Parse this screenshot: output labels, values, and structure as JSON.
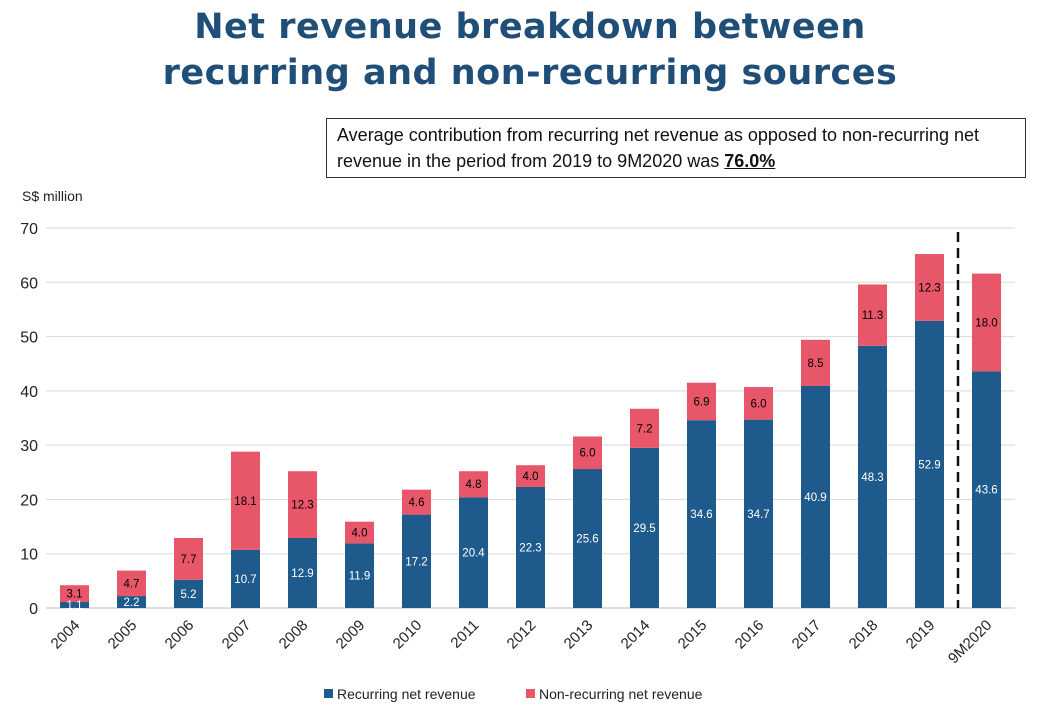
{
  "title": {
    "line1": "Net revenue breakdown between",
    "line2": "recurring and non-recurring sources"
  },
  "callout": {
    "text": "Average contribution from recurring net revenue as opposed to non-recurring net revenue in the period from 2019 to 9M2020 was ",
    "highlight": "76.0%"
  },
  "colors": {
    "recurring": "#1f5a8c",
    "non_recurring": "#e8566a",
    "title": "#1f4e79"
  },
  "chart_data": {
    "type": "bar",
    "stacked": true,
    "ylabel": "S$ million",
    "ylim": [
      0,
      70
    ],
    "yticks": [
      0,
      10,
      20,
      30,
      40,
      50,
      60,
      70
    ],
    "grid": true,
    "legend_position": "bottom",
    "divider_after": "2019",
    "categories": [
      "2004",
      "2005",
      "2006",
      "2007",
      "2008",
      "2009",
      "2010",
      "2011",
      "2012",
      "2013",
      "2014",
      "2015",
      "2016",
      "2017",
      "2018",
      "2019",
      "9M2020"
    ],
    "series": [
      {
        "name": "Recurring net revenue",
        "values": [
          1.1,
          2.2,
          5.2,
          10.7,
          12.9,
          11.9,
          17.2,
          20.4,
          22.3,
          25.6,
          29.5,
          34.6,
          34.7,
          40.9,
          48.3,
          52.9,
          43.6
        ]
      },
      {
        "name": "Non-recurring net revenue",
        "values": [
          3.1,
          4.7,
          7.7,
          18.1,
          12.3,
          4.0,
          4.6,
          4.8,
          4.0,
          6.0,
          7.2,
          6.9,
          6.0,
          8.5,
          11.3,
          12.3,
          18.0
        ]
      }
    ]
  }
}
